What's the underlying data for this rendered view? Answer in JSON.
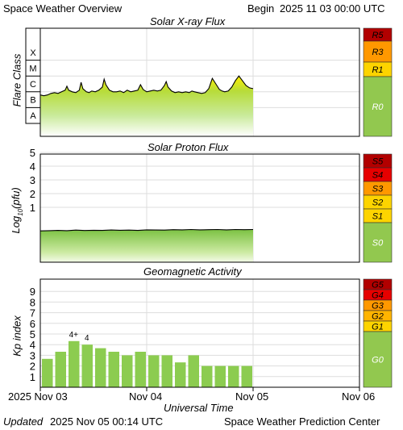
{
  "header": {
    "title": "Space Weather Overview",
    "begin_label": "Begin",
    "begin_value": "2025 11 03 00:00 UTC"
  },
  "footer": {
    "updated_label": "Updated",
    "updated_value": "2025 Nov 05 00:14 UTC",
    "source": "Space Weather Prediction Center"
  },
  "time_axis": {
    "label": "Universal Time",
    "ticks": [
      "2025 Nov 03",
      "Nov 04",
      "Nov 05",
      "Nov 06"
    ],
    "range_hours": [
      0,
      72
    ]
  },
  "colors": {
    "grid": "#dddddd",
    "scale_green": "#92c84f",
    "scale_yellow": "#fdd400",
    "scale_orange": "#ff9800",
    "scale_red": "#e60000",
    "scale_darkred": "#b20000",
    "kp_bar": "#8ccc50"
  },
  "chart_data": [
    {
      "type": "area",
      "title": "Solar X-ray Flux",
      "ylabel": "Flare Class",
      "y_scale": "log",
      "ylim": [
        "A",
        "X+"
      ],
      "tick_labels": [
        "X",
        "M",
        "C",
        "B",
        "A"
      ],
      "scale_labels": [
        "R5",
        "R3",
        "R1",
        "R0"
      ],
      "series": [
        {
          "x_hours": [
            0,
            0.8,
            1.6,
            2.4,
            3.2,
            4.0,
            4.8,
            5.6,
            6.0,
            6.4,
            7.2,
            8.0,
            8.8,
            9.2,
            9.6,
            10.4,
            11.0,
            11.6,
            12.4,
            13.2,
            14.0,
            14.4,
            14.8,
            15.6,
            16.4,
            17.2,
            18.0,
            18.8,
            19.6,
            20.4,
            21.2,
            22.0,
            22.6,
            23.2,
            24.0,
            24.8,
            25.6,
            26.4,
            27.2,
            28.0,
            28.4,
            28.8,
            29.6,
            30.4,
            31.2,
            32.0,
            32.8,
            33.6,
            34.2,
            34.8,
            35.6,
            36.4,
            37.2,
            38.0,
            38.8,
            39.6,
            40.4,
            41.0,
            41.6,
            42.4,
            43.2,
            44.0,
            44.8,
            45.6,
            46.4,
            47.2,
            48.0
          ],
          "flare_class_log": [
            -6.2,
            -6.25,
            -6.2,
            -6.1,
            -6.05,
            -6.1,
            -6.0,
            -5.9,
            -5.65,
            -5.9,
            -6.0,
            -6.05,
            -5.9,
            -5.4,
            -5.8,
            -6.0,
            -6.05,
            -5.95,
            -6.0,
            -5.9,
            -5.7,
            -5.2,
            -5.55,
            -5.9,
            -6.0,
            -6.0,
            -5.95,
            -6.05,
            -5.9,
            -6.0,
            -5.95,
            -5.9,
            -5.55,
            -5.85,
            -6.0,
            -5.95,
            -5.9,
            -5.95,
            -5.9,
            -5.6,
            -5.35,
            -5.7,
            -5.95,
            -6.05,
            -6.0,
            -6.05,
            -6.0,
            -6.05,
            -5.95,
            -6.0,
            -6.05,
            -6.1,
            -6.05,
            -5.8,
            -5.15,
            -5.5,
            -5.85,
            -5.95,
            -6.0,
            -5.95,
            -5.7,
            -5.3,
            -5.0,
            -5.3,
            -5.6,
            -5.75,
            -5.8
          ]
        }
      ]
    },
    {
      "type": "area",
      "title": "Solar Proton Flux",
      "ylabel": "Log10(pfu)",
      "ylim": [
        -1.5,
        6
      ],
      "tick_labels": [
        "5",
        "4",
        "3",
        "2",
        "1"
      ],
      "scale_labels": [
        "S5",
        "S4",
        "S3",
        "S2",
        "S1",
        "S0"
      ],
      "series": [
        {
          "x_hours": [
            0,
            2,
            4,
            6,
            8,
            10,
            12,
            14,
            16,
            18,
            20,
            22,
            24,
            26,
            28,
            30,
            32,
            34,
            36,
            38,
            40,
            42,
            44,
            46,
            48
          ],
          "log_pfu": [
            -0.72,
            -0.7,
            -0.68,
            -0.7,
            -0.66,
            -0.69,
            -0.67,
            -0.68,
            -0.65,
            -0.67,
            -0.66,
            -0.68,
            -0.64,
            -0.65,
            -0.66,
            -0.63,
            -0.64,
            -0.62,
            -0.64,
            -0.63,
            -0.62,
            -0.64,
            -0.62,
            -0.63,
            -0.62
          ]
        }
      ]
    },
    {
      "type": "bar",
      "title": "Geomagnetic Activity",
      "ylabel": "Kp index",
      "ylim": [
        0,
        10
      ],
      "tick_labels": [
        "9",
        "8",
        "7",
        "6",
        "5",
        "4",
        "3",
        "2",
        "1"
      ],
      "scale_labels": [
        "G5",
        "G4",
        "G3",
        "G2",
        "G1",
        "G0"
      ],
      "bar_width_hours": 3,
      "x_hours": [
        0,
        3,
        6,
        9,
        12,
        15,
        18,
        21,
        24,
        27,
        30,
        33,
        36,
        39,
        42,
        45
      ],
      "values": [
        2.67,
        3.33,
        4.33,
        4.0,
        3.67,
        3.33,
        3.0,
        3.33,
        3.0,
        3.0,
        2.33,
        3.0,
        2.0,
        2.0,
        2.0,
        2.0
      ],
      "data_labels": [
        {
          "index": 2,
          "text": "4+"
        },
        {
          "index": 3,
          "text": "4"
        }
      ]
    }
  ]
}
